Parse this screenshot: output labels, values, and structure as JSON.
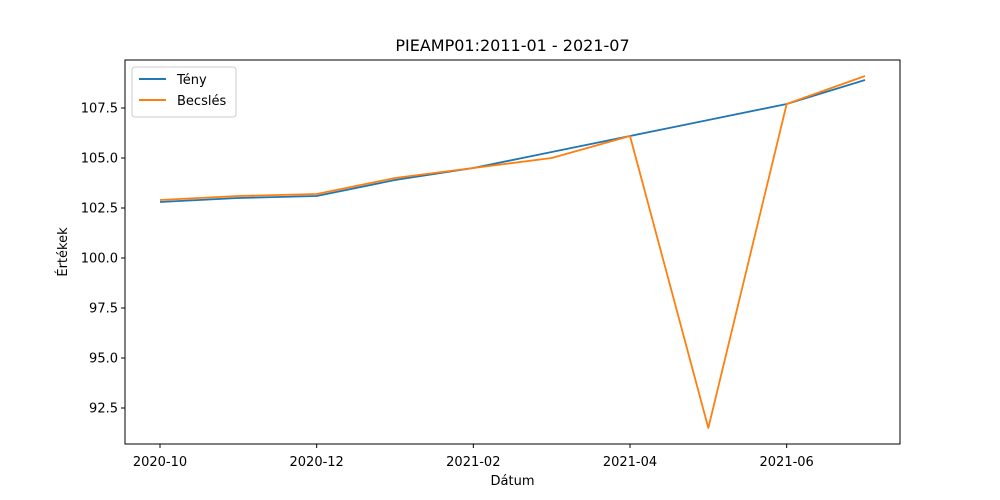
{
  "chart_data": {
    "type": "line",
    "title": "PIEAMP01:2011-01 - 2021-07",
    "xlabel": "Dátum",
    "ylabel": "Értékek",
    "x": [
      "2020-10",
      "2020-11",
      "2020-12",
      "2021-01",
      "2021-02",
      "2021-03",
      "2021-04",
      "2021-05",
      "2021-06",
      "2021-07"
    ],
    "x_ticks": [
      "2020-10",
      "2020-12",
      "2021-02",
      "2021-04",
      "2021-06"
    ],
    "y_ticks": [
      92.5,
      95.0,
      97.5,
      100.0,
      102.5,
      105.0,
      107.5
    ],
    "ylim": [
      90.7,
      109.9
    ],
    "grid": false,
    "legend_position": "top-left",
    "series": [
      {
        "name": "Tény",
        "color": "#1f77b4",
        "values": [
          102.8,
          103.0,
          103.1,
          103.9,
          104.5,
          105.3,
          106.1,
          106.9,
          107.7,
          108.9
        ]
      },
      {
        "name": "Becslés",
        "color": "#ff7f0e",
        "values": [
          102.9,
          103.1,
          103.2,
          104.0,
          104.5,
          105.0,
          106.1,
          91.5,
          107.7,
          109.1
        ]
      }
    ]
  }
}
